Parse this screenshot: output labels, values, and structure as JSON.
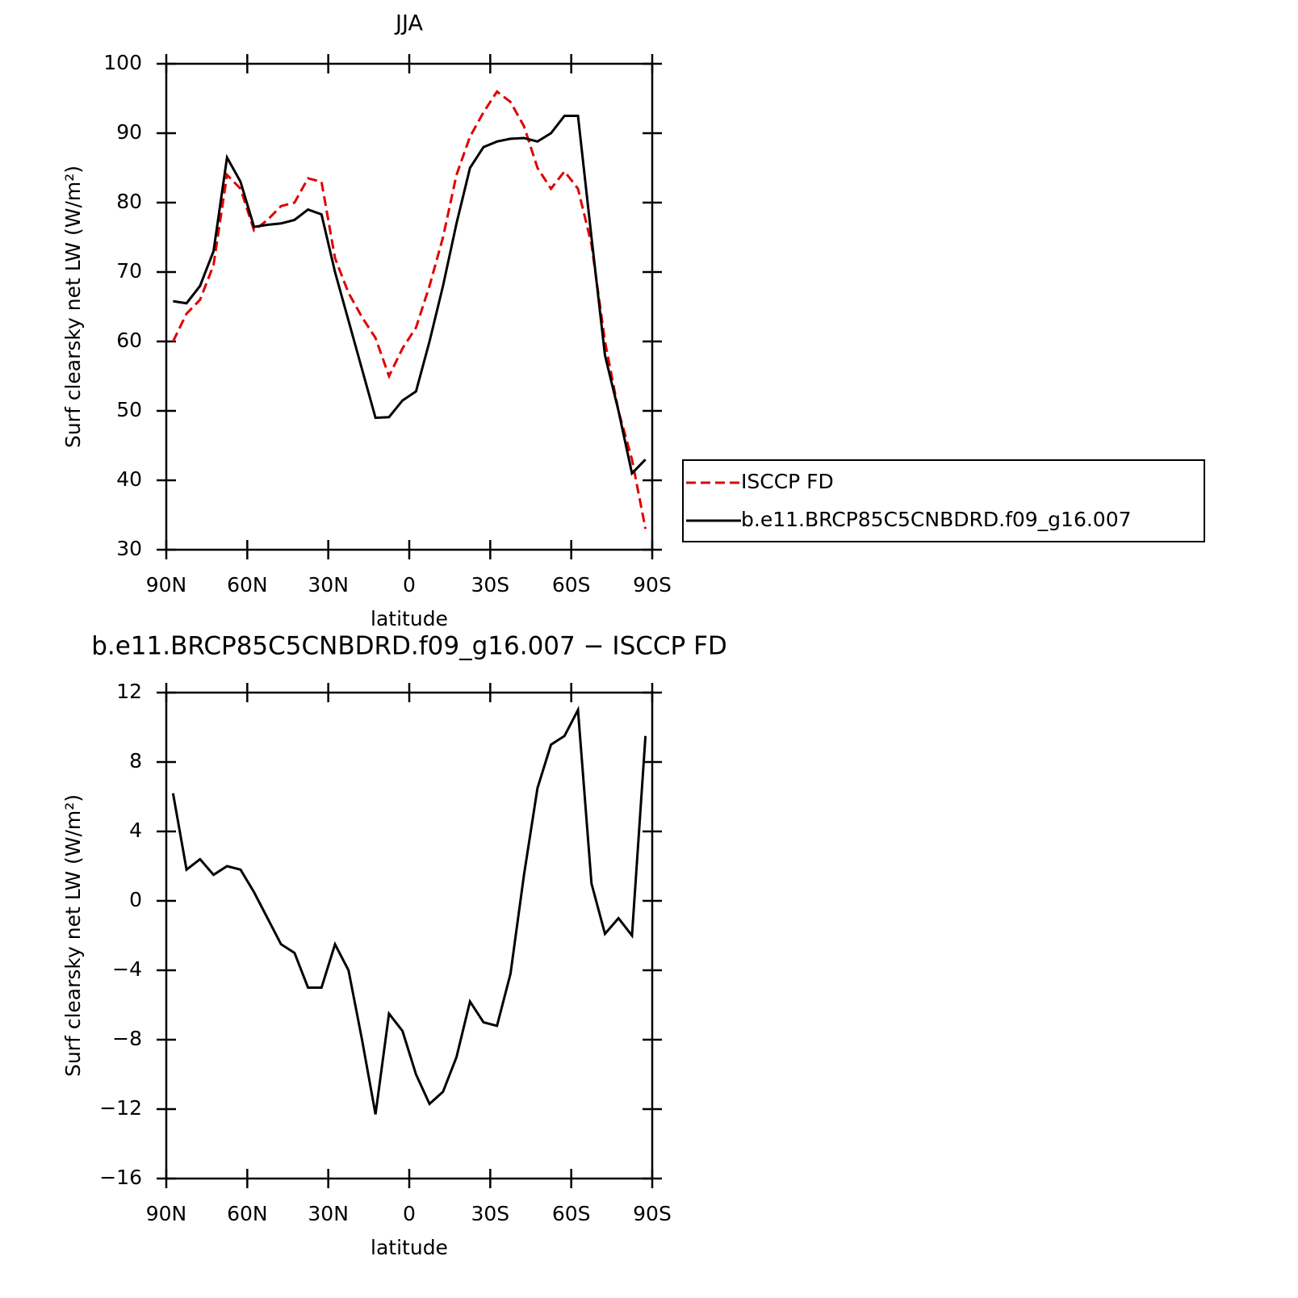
{
  "chart_data": [
    {
      "type": "line",
      "title": "JJA",
      "xlabel": "latitude",
      "ylabel": "Surf clearsky net LW (W/m²)",
      "x": [
        87.5,
        82.5,
        77.5,
        72.5,
        67.5,
        62.5,
        57.5,
        52.5,
        47.5,
        42.5,
        37.5,
        32.5,
        27.5,
        22.5,
        17.5,
        12.5,
        7.5,
        2.5,
        -2.5,
        -7.5,
        -12.5,
        -17.5,
        -22.5,
        -27.5,
        -32.5,
        -37.5,
        -42.5,
        -47.5,
        -52.5,
        -57.5,
        -62.5,
        -67.5,
        -72.5,
        -77.5,
        -82.5,
        -87.5
      ],
      "series": [
        {
          "name": "ISCCP FD",
          "color": "#e00000",
          "dash": true,
          "values": [
            60,
            64,
            66,
            71,
            84,
            82,
            76,
            77.5,
            79.5,
            80,
            83.5,
            83,
            72,
            67,
            63.5,
            60.5,
            55,
            59,
            62,
            68,
            75,
            84,
            89.5,
            93,
            96,
            94.5,
            91,
            85,
            82,
            84.5,
            82,
            74,
            60,
            50,
            43,
            33
          ]
        },
        {
          "name": "b.e11.BRCP85C5CNBDRD.f09_g16.007",
          "color": "#000000",
          "dash": false,
          "values": [
            65.8,
            65.5,
            68,
            73,
            86.5,
            83,
            76.5,
            76.8,
            77,
            77.5,
            79,
            78.3,
            70,
            63,
            56,
            49,
            49.1,
            51.5,
            52.8,
            60,
            68,
            77,
            85,
            88,
            88.8,
            89.2,
            89.3,
            88.8,
            90,
            92.5,
            92.5,
            75,
            58,
            50,
            41,
            43
          ]
        }
      ],
      "xlim": [
        90,
        -90
      ],
      "xticks": [
        {
          "value": 90,
          "label": "90N"
        },
        {
          "value": 60,
          "label": "60N"
        },
        {
          "value": 30,
          "label": "30N"
        },
        0,
        {
          "value": -30,
          "label": "30S"
        },
        {
          "value": -60,
          "label": "60S"
        },
        {
          "value": -90,
          "label": "90S"
        }
      ],
      "ylim": [
        30,
        100
      ],
      "yticks": [
        30,
        40,
        50,
        60,
        70,
        80,
        90,
        100
      ],
      "legend": "right"
    },
    {
      "type": "line",
      "title": "b.e11.BRCP85C5CNBDRD.f09_g16.007 − ISCCP FD",
      "xlabel": "latitude",
      "ylabel": "Surf clearsky net LW (W/m²)",
      "x": [
        87.5,
        82.5,
        77.5,
        72.5,
        67.5,
        62.5,
        57.5,
        52.5,
        47.5,
        42.5,
        37.5,
        32.5,
        27.5,
        22.5,
        17.5,
        12.5,
        7.5,
        2.5,
        -2.5,
        -7.5,
        -12.5,
        -17.5,
        -22.5,
        -27.5,
        -32.5,
        -37.5,
        -42.5,
        -47.5,
        -52.5,
        -57.5,
        -62.5,
        -67.5,
        -72.5,
        -77.5,
        -82.5,
        -87.5
      ],
      "series": [
        {
          "color": "#000000",
          "dash": false,
          "values": [
            6.2,
            1.8,
            2.4,
            1.5,
            2.0,
            1.8,
            0.5,
            -1,
            -2.5,
            -3,
            -5,
            -5,
            -2.5,
            -4,
            -8,
            -12.3,
            -6.5,
            -7.5,
            -10,
            -11.7,
            -11,
            -9,
            -5.8,
            -7,
            -7.2,
            -4.2,
            1.5,
            6.5,
            9,
            9.5,
            11,
            1,
            -1.9,
            -1,
            -2,
            9.5
          ]
        }
      ],
      "xlim": [
        90,
        -90
      ],
      "xticks": [
        {
          "value": 90,
          "label": "90N"
        },
        {
          "value": 60,
          "label": "60N"
        },
        {
          "value": 30,
          "label": "30N"
        },
        0,
        {
          "value": -30,
          "label": "30S"
        },
        {
          "value": -60,
          "label": "60S"
        },
        {
          "value": -90,
          "label": "90S"
        }
      ],
      "ylim": [
        -16,
        12
      ],
      "yticks": [
        {
          "value": -16,
          "label": "−16"
        },
        {
          "value": -12,
          "label": "−12"
        },
        {
          "value": -8,
          "label": "−8"
        },
        {
          "value": -4,
          "label": "−4"
        },
        0,
        4,
        8,
        12
      ]
    }
  ]
}
